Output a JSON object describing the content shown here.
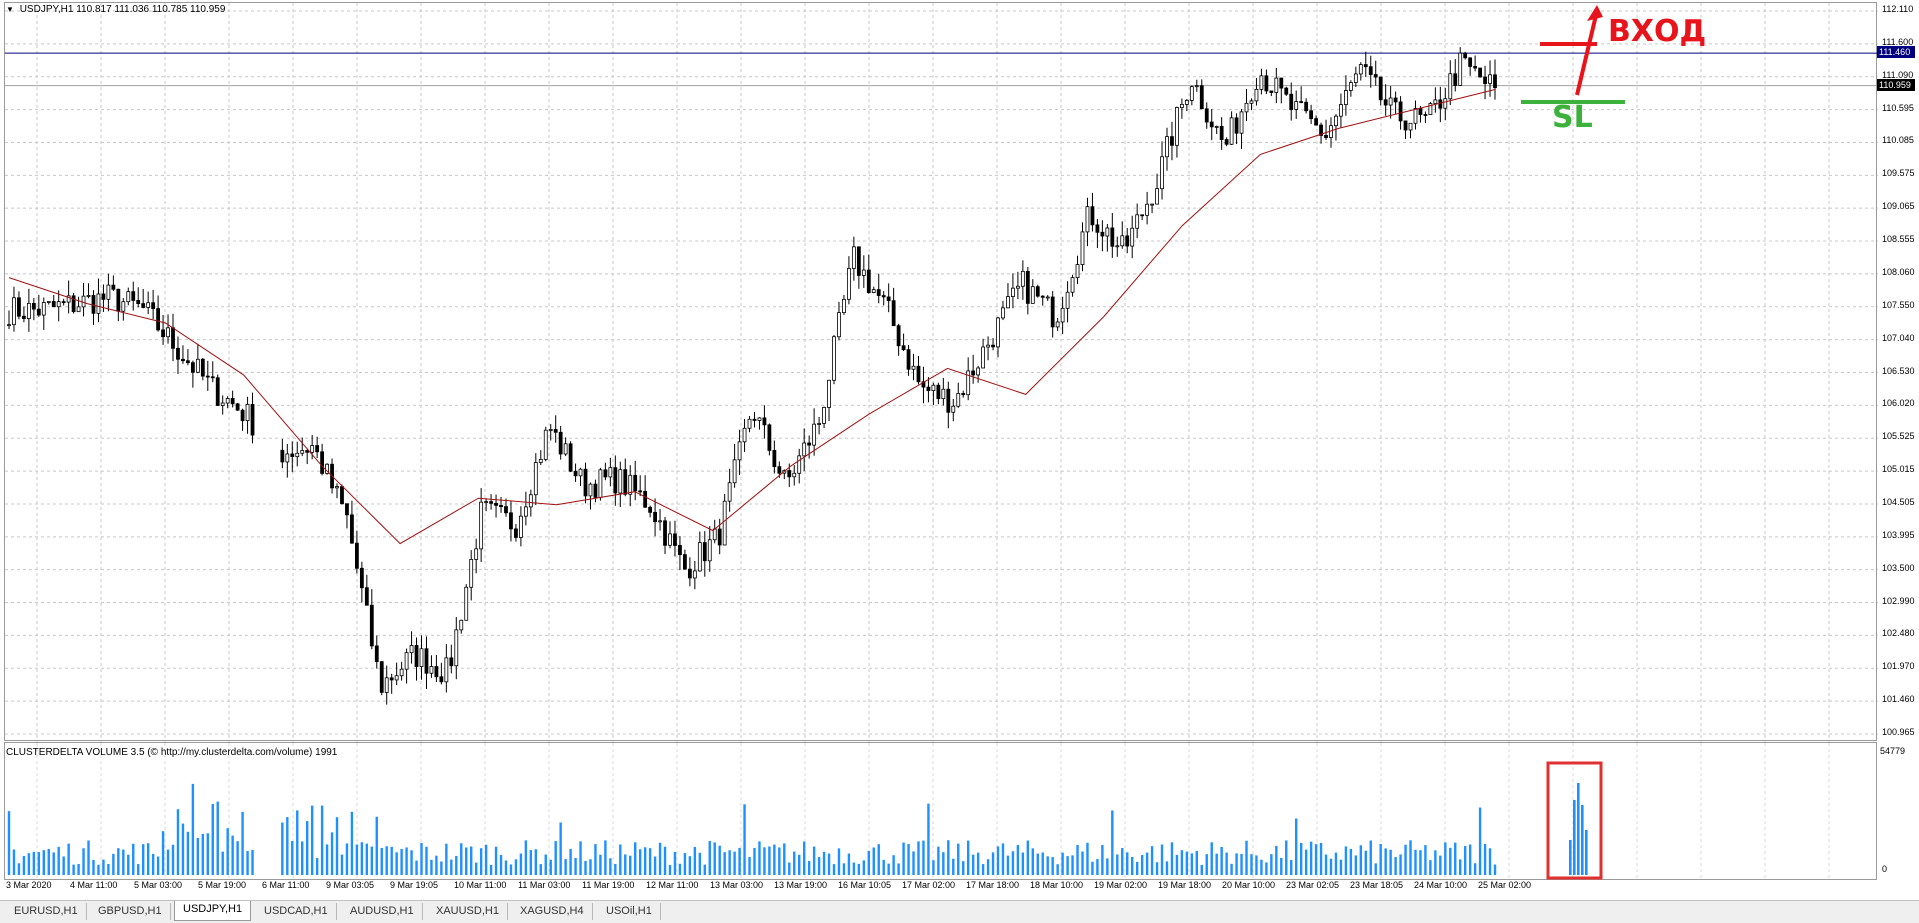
{
  "header": {
    "symbol": "USDJPY,H1",
    "ohlc": "110.817 111.036 110.785 110.959"
  },
  "volume_indicator": {
    "title": "CLUSTERDELTA VOLUME 3.5 (© http://my.clusterdelta.com/volume) 1991",
    "max_label": "54779",
    "zero_label": "0"
  },
  "annotations": {
    "entry_label": "ВХОД",
    "stop_label": "SL"
  },
  "colors": {
    "candles": "#000000",
    "moving_average": "#a01010",
    "volume_bars": "#1e90ff",
    "entry_annotation": "#e8141c",
    "stop_annotation": "#3cb23c",
    "horizontal_level": "#000080"
  },
  "chart_data": {
    "type": "candlestick",
    "symbol": "USDJPY",
    "timeframe": "H1",
    "ylim": [
      100.965,
      112.11
    ],
    "y_ticks": [
      "112.110",
      "111.600",
      "111.090",
      "110.595",
      "110.085",
      "109.575",
      "109.065",
      "108.555",
      "108.060",
      "107.550",
      "107.040",
      "106.530",
      "106.020",
      "105.525",
      "105.015",
      "104.505",
      "103.995",
      "103.500",
      "102.990",
      "102.480",
      "101.970",
      "101.460",
      "100.965"
    ],
    "x_ticks": [
      "3 Mar 2020",
      "4 Mar 11:00",
      "5 Mar 03:00",
      "5 Mar 19:00",
      "6 Mar 11:00",
      "9 Mar 03:05",
      "9 Mar 19:05",
      "10 Mar 11:00",
      "11 Mar 03:00",
      "11 Mar 19:00",
      "12 Mar 11:00",
      "13 Mar 03:00",
      "13 Mar 19:00",
      "16 Mar 10:05",
      "17 Mar 02:00",
      "17 Mar 18:00",
      "18 Mar 10:00",
      "19 Mar 02:00",
      "19 Mar 18:00",
      "20 Mar 10:00",
      "23 Mar 02:05",
      "23 Mar 18:05",
      "24 Mar 10:00",
      "25 Mar 02:00"
    ],
    "horizontal_level": "111.460",
    "current_price": "110.959",
    "price_path": [
      107.5,
      107.5,
      107.6,
      107.7,
      107.5,
      106.9,
      106.3,
      105.9,
      105.3,
      105.4,
      104.3,
      101.7,
      102.2,
      101.9,
      104.4,
      104.2,
      105.7,
      104.8,
      104.9,
      104.5,
      103.5,
      104.0,
      106.0,
      104.8,
      105.8,
      108.3,
      107.5,
      106.3,
      106.1,
      107.0,
      107.9,
      107.4,
      109.0,
      108.4,
      109.5,
      111.1,
      110.0,
      111.2,
      110.6,
      110.2,
      111.2,
      110.5,
      110.4,
      111.3,
      110.9
    ],
    "ma_path": [
      108.0,
      107.6,
      107.3,
      106.5,
      105.1,
      103.9,
      104.6,
      104.5,
      104.7,
      104.1,
      105.1,
      105.9,
      106.6,
      106.2,
      107.4,
      108.8,
      109.9,
      110.3,
      110.6,
      110.9
    ],
    "volume_max": 54779
  }
}
